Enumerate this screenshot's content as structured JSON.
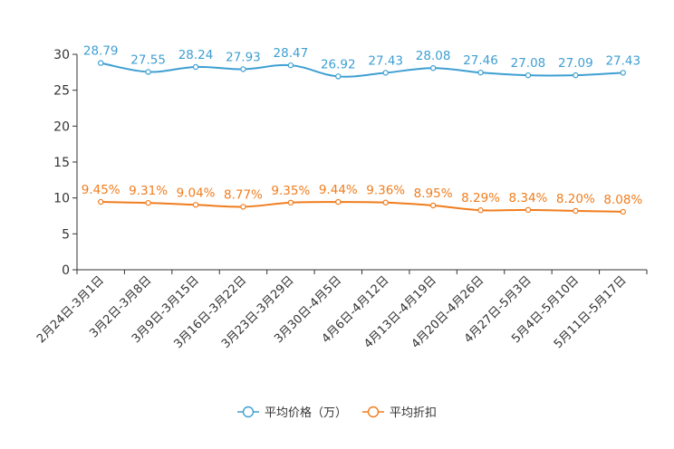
{
  "chart_data": {
    "type": "line",
    "title": "",
    "xlabel": "",
    "ylabel": "",
    "ylim": [
      0,
      30
    ],
    "yticks": [
      0,
      5,
      10,
      15,
      20,
      25,
      30
    ],
    "categories": [
      "2月24日-3月1日",
      "3月2日-3月8日",
      "3月9日-3月15日",
      "3月16日-3月22日",
      "3月23日-3月29日",
      "3月30日-4月5日",
      "4月6日-4月12日",
      "4月13日-4月19日",
      "4月20日-4月26日",
      "4月27日-5月3日",
      "5月4日-5月10日",
      "5月11日-5月17日"
    ],
    "series": [
      {
        "name": "平均价格（万）",
        "color": "#3e9fd2",
        "values": [
          28.79,
          27.55,
          28.24,
          27.93,
          28.47,
          26.92,
          27.43,
          28.08,
          27.46,
          27.08,
          27.09,
          27.43
        ],
        "labels": [
          "28.79",
          "27.55",
          "28.24",
          "27.93",
          "28.47",
          "26.92",
          "27.43",
          "28.08",
          "27.46",
          "27.08",
          "27.09",
          "27.43"
        ]
      },
      {
        "name": "平均折扣",
        "color": "#f07d1e",
        "values": [
          9.45,
          9.31,
          9.04,
          8.77,
          9.35,
          9.44,
          9.36,
          8.95,
          8.29,
          8.34,
          8.2,
          8.08
        ],
        "labels": [
          "9.45%",
          "9.31%",
          "9.04%",
          "8.77%",
          "9.35%",
          "9.44%",
          "9.36%",
          "8.95%",
          "8.29%",
          "8.34%",
          "8.20%",
          "8.08%"
        ]
      }
    ],
    "legend_position": "bottom",
    "grid": false
  }
}
